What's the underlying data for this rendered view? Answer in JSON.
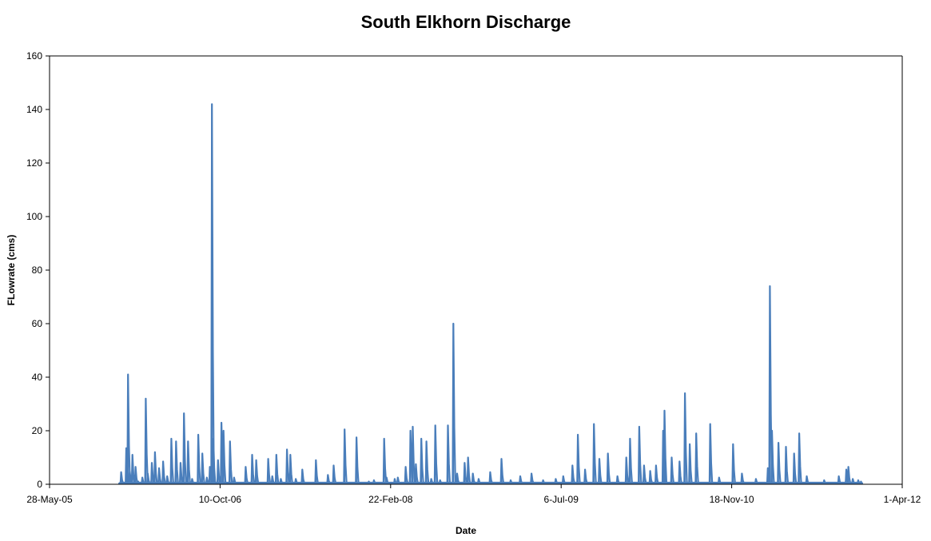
{
  "chart_data": {
    "type": "line",
    "title": "South Elkhorn Discharge",
    "xlabel": "Date",
    "ylabel": "FLowrate (cms)",
    "ylim": [
      0,
      160
    ],
    "yticks": [
      "0",
      "20",
      "40",
      "60",
      "80",
      "100",
      "120",
      "140",
      "160"
    ],
    "xlim": [
      "2005-05-28",
      "2012-04-01"
    ],
    "xticks": [
      {
        "date": "2005-05-28",
        "label": "28-May-05"
      },
      {
        "date": "2006-10-10",
        "label": "10-Oct-06"
      },
      {
        "date": "2008-02-22",
        "label": "22-Feb-08"
      },
      {
        "date": "2009-07-06",
        "label": "6-Jul-09"
      },
      {
        "date": "2010-11-18",
        "label": "18-Nov-10"
      },
      {
        "date": "2012-04-01",
        "label": "1-Apr-12"
      }
    ],
    "grid": false,
    "legend": "none",
    "colors": {
      "series": "#4a7ebb",
      "axis": "#000000"
    },
    "series": [
      {
        "data": [
          {
            "x": "2005-12-20",
            "y": 0.5
          },
          {
            "x": "2005-12-24",
            "y": 4.5
          },
          {
            "x": "2005-12-28",
            "y": 0.8
          },
          {
            "x": "2006-01-08",
            "y": 13.5
          },
          {
            "x": "2006-01-13",
            "y": 41.0
          },
          {
            "x": "2006-01-18",
            "y": 5.0
          },
          {
            "x": "2006-01-26",
            "y": 11.0
          },
          {
            "x": "2006-02-04",
            "y": 6.5
          },
          {
            "x": "2006-02-12",
            "y": 1.0
          },
          {
            "x": "2006-02-24",
            "y": 2.5
          },
          {
            "x": "2006-03-06",
            "y": 32.0
          },
          {
            "x": "2006-03-12",
            "y": 4.0
          },
          {
            "x": "2006-03-24",
            "y": 8.0
          },
          {
            "x": "2006-04-02",
            "y": 12.0
          },
          {
            "x": "2006-04-14",
            "y": 6.0
          },
          {
            "x": "2006-04-26",
            "y": 8.5
          },
          {
            "x": "2006-05-08",
            "y": 3.0
          },
          {
            "x": "2006-05-20",
            "y": 17.0
          },
          {
            "x": "2006-06-03",
            "y": 16.0
          },
          {
            "x": "2006-06-16",
            "y": 8.0
          },
          {
            "x": "2006-06-26",
            "y": 26.5
          },
          {
            "x": "2006-07-08",
            "y": 16.0
          },
          {
            "x": "2006-07-20",
            "y": 2.0
          },
          {
            "x": "2006-08-07",
            "y": 18.5
          },
          {
            "x": "2006-08-19",
            "y": 11.5
          },
          {
            "x": "2006-09-01",
            "y": 2.5
          },
          {
            "x": "2006-09-10",
            "y": 6.5
          },
          {
            "x": "2006-09-16",
            "y": 142.0
          },
          {
            "x": "2006-09-20",
            "y": 17.0
          },
          {
            "x": "2006-10-04",
            "y": 9.0
          },
          {
            "x": "2006-10-14",
            "y": 23.0
          },
          {
            "x": "2006-10-20",
            "y": 20.0
          },
          {
            "x": "2006-11-08",
            "y": 16.0
          },
          {
            "x": "2006-11-20",
            "y": 2.5
          },
          {
            "x": "2006-12-24",
            "y": 6.5
          },
          {
            "x": "2007-01-12",
            "y": 11.0
          },
          {
            "x": "2007-01-24",
            "y": 9.0
          },
          {
            "x": "2007-02-28",
            "y": 9.5
          },
          {
            "x": "2007-03-12",
            "y": 3.0
          },
          {
            "x": "2007-03-24",
            "y": 11.0
          },
          {
            "x": "2007-04-06",
            "y": 2.0
          },
          {
            "x": "2007-04-24",
            "y": 13.0
          },
          {
            "x": "2007-05-04",
            "y": 11.0
          },
          {
            "x": "2007-05-20",
            "y": 2.0
          },
          {
            "x": "2007-06-08",
            "y": 5.5
          },
          {
            "x": "2007-07-18",
            "y": 9.0
          },
          {
            "x": "2007-08-22",
            "y": 3.5
          },
          {
            "x": "2007-09-08",
            "y": 7.0
          },
          {
            "x": "2007-10-10",
            "y": 20.5
          },
          {
            "x": "2007-11-14",
            "y": 17.5
          },
          {
            "x": "2007-12-20",
            "y": 1.0
          },
          {
            "x": "2008-01-04",
            "y": 1.5
          },
          {
            "x": "2008-02-03",
            "y": 17.0
          },
          {
            "x": "2008-02-10",
            "y": 2.5
          },
          {
            "x": "2008-03-05",
            "y": 2.0
          },
          {
            "x": "2008-03-14",
            "y": 2.5
          },
          {
            "x": "2008-04-06",
            "y": 6.5
          },
          {
            "x": "2008-04-20",
            "y": 20.0
          },
          {
            "x": "2008-04-27",
            "y": 21.5
          },
          {
            "x": "2008-05-06",
            "y": 7.5
          },
          {
            "x": "2008-05-22",
            "y": 17.0
          },
          {
            "x": "2008-06-06",
            "y": 16.0
          },
          {
            "x": "2008-06-20",
            "y": 2.0
          },
          {
            "x": "2008-07-02",
            "y": 22.0
          },
          {
            "x": "2008-07-16",
            "y": 1.5
          },
          {
            "x": "2008-08-08",
            "y": 22.0
          },
          {
            "x": "2008-08-24",
            "y": 60.0
          },
          {
            "x": "2008-09-04",
            "y": 4.0
          },
          {
            "x": "2008-09-26",
            "y": 8.0
          },
          {
            "x": "2008-10-06",
            "y": 10.0
          },
          {
            "x": "2008-10-20",
            "y": 4.0
          },
          {
            "x": "2008-11-06",
            "y": 2.0
          },
          {
            "x": "2008-12-10",
            "y": 4.5
          },
          {
            "x": "2009-01-12",
            "y": 9.5
          },
          {
            "x": "2009-02-08",
            "y": 1.5
          },
          {
            "x": "2009-03-08",
            "y": 3.0
          },
          {
            "x": "2009-04-10",
            "y": 4.0
          },
          {
            "x": "2009-05-14",
            "y": 1.5
          },
          {
            "x": "2009-06-20",
            "y": 2.0
          },
          {
            "x": "2009-07-12",
            "y": 3.0
          },
          {
            "x": "2009-08-08",
            "y": 7.0
          },
          {
            "x": "2009-08-24",
            "y": 18.5
          },
          {
            "x": "2009-09-14",
            "y": 5.5
          },
          {
            "x": "2009-10-10",
            "y": 22.5
          },
          {
            "x": "2009-10-26",
            "y": 9.5
          },
          {
            "x": "2009-11-20",
            "y": 11.5
          },
          {
            "x": "2009-12-18",
            "y": 3.0
          },
          {
            "x": "2010-01-13",
            "y": 10.0
          },
          {
            "x": "2010-01-24",
            "y": 17.0
          },
          {
            "x": "2010-02-20",
            "y": 21.5
          },
          {
            "x": "2010-03-06",
            "y": 7.0
          },
          {
            "x": "2010-03-24",
            "y": 5.0
          },
          {
            "x": "2010-04-10",
            "y": 7.0
          },
          {
            "x": "2010-05-01",
            "y": 20.0
          },
          {
            "x": "2010-05-05",
            "y": 27.5
          },
          {
            "x": "2010-05-26",
            "y": 10.0
          },
          {
            "x": "2010-06-18",
            "y": 8.5
          },
          {
            "x": "2010-07-04",
            "y": 34.0
          },
          {
            "x": "2010-07-18",
            "y": 15.0
          },
          {
            "x": "2010-08-06",
            "y": 19.0
          },
          {
            "x": "2010-09-16",
            "y": 22.5
          },
          {
            "x": "2010-10-12",
            "y": 2.5
          },
          {
            "x": "2010-11-22",
            "y": 15.0
          },
          {
            "x": "2010-12-18",
            "y": 4.0
          },
          {
            "x": "2011-01-28",
            "y": 2.0
          },
          {
            "x": "2011-03-04",
            "y": 6.0
          },
          {
            "x": "2011-03-10",
            "y": 74.0
          },
          {
            "x": "2011-03-16",
            "y": 20.0
          },
          {
            "x": "2011-04-04",
            "y": 15.5
          },
          {
            "x": "2011-04-26",
            "y": 14.0
          },
          {
            "x": "2011-05-20",
            "y": 11.5
          },
          {
            "x": "2011-06-04",
            "y": 19.0
          },
          {
            "x": "2011-06-26",
            "y": 3.0
          },
          {
            "x": "2011-08-16",
            "y": 1.5
          },
          {
            "x": "2011-09-28",
            "y": 3.0
          },
          {
            "x": "2011-10-20",
            "y": 5.5
          },
          {
            "x": "2011-10-26",
            "y": 6.5
          },
          {
            "x": "2011-11-08",
            "y": 2.0
          },
          {
            "x": "2011-11-24",
            "y": 1.5
          },
          {
            "x": "2011-12-02",
            "y": 1.0
          }
        ]
      }
    ]
  }
}
